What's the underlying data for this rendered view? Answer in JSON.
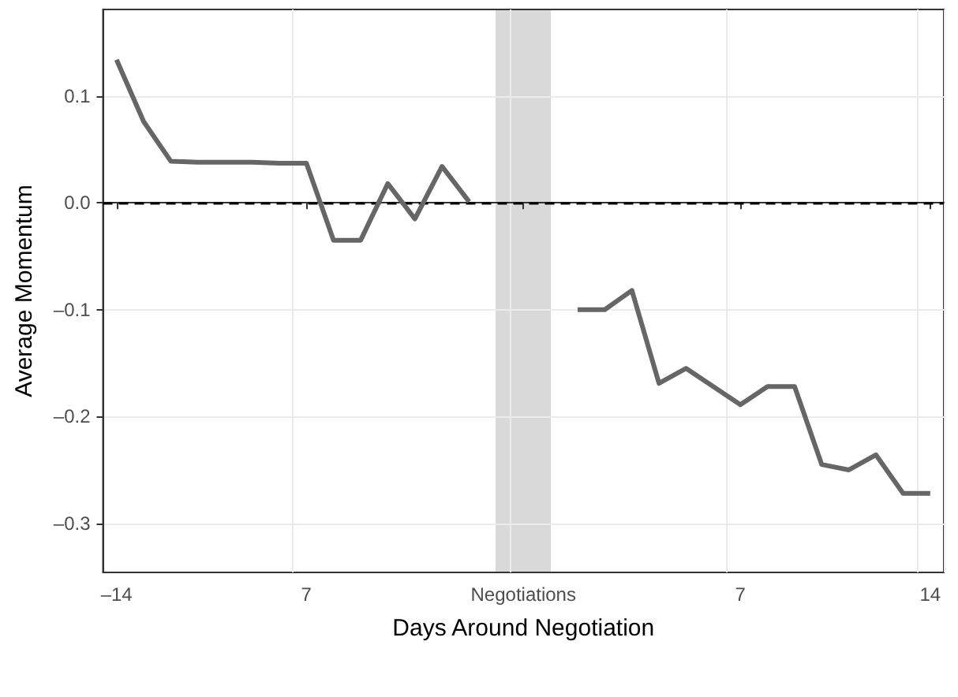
{
  "chart_data": {
    "type": "line",
    "xlabel": "Days Around Negotiation",
    "ylabel": "Average Momentum",
    "categories": [
      "–14",
      null,
      null,
      null,
      null,
      null,
      null,
      "7",
      null,
      null,
      null,
      null,
      null,
      null,
      null,
      "Negotiations",
      null,
      null,
      null,
      null,
      null,
      null,
      null,
      "7",
      null,
      null,
      null,
      null,
      null,
      null,
      "14"
    ],
    "series": [
      {
        "color": "#666666",
        "values": [
          0.134,
          0.076,
          0.039,
          0.038,
          0.038,
          0.038,
          0.037,
          0.037,
          -0.035,
          -0.035,
          0.018,
          -0.015,
          0.034,
          0.001,
          null,
          null,
          null,
          -0.1,
          -0.1,
          -0.082,
          -0.169,
          -0.155,
          -0.172,
          -0.189,
          -0.172,
          -0.172,
          -0.245,
          -0.25,
          -0.236,
          -0.272,
          -0.272
        ]
      }
    ],
    "ylim": [
      -0.346,
      0.181
    ],
    "yticks": [
      {
        "value": -0.3,
        "label": "–0.3"
      },
      {
        "value": -0.2,
        "label": "–0.2"
      },
      {
        "value": -0.1,
        "label": "–0.1"
      },
      {
        "value": 0,
        "label": "0.0"
      },
      {
        "value": 0.1,
        "label": "0.1"
      }
    ],
    "ref_lines": [
      {
        "axis": "y",
        "value": 0,
        "color": "#000000",
        "line_style": "dashed"
      }
    ],
    "grid": true,
    "marker": "none",
    "line_style": "solid"
  }
}
